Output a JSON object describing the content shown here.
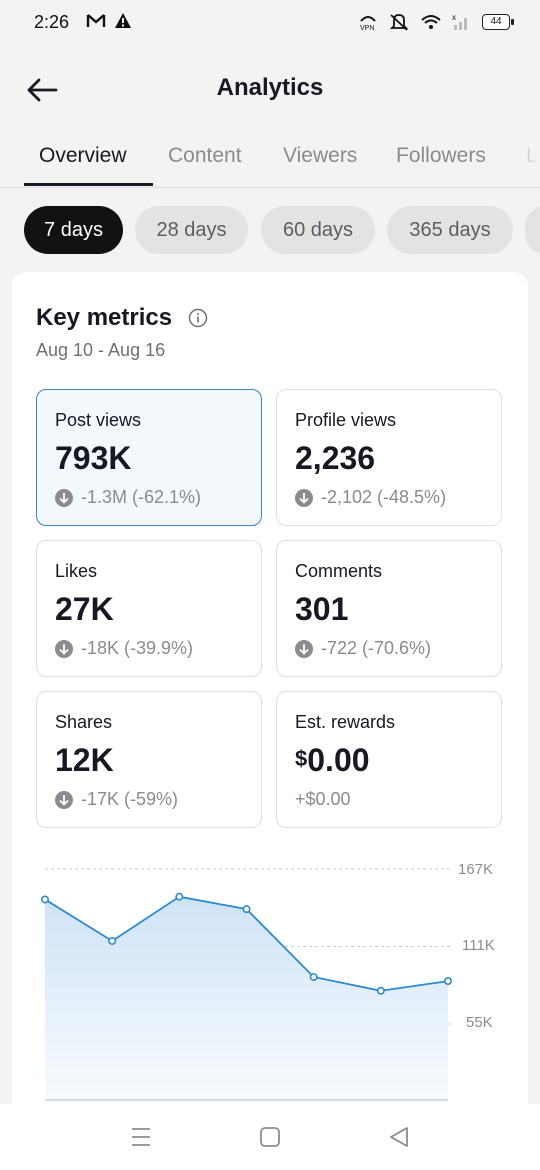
{
  "status_bar": {
    "time": "2:26",
    "battery": "44",
    "left_icons": [
      "gmail-icon",
      "alert-icon"
    ],
    "right_icons": [
      "vpn-icon",
      "mute-icon",
      "wifi-icon",
      "signal-icon",
      "battery-icon"
    ]
  },
  "header": {
    "title": "Analytics",
    "back_icon": "back-arrow-icon"
  },
  "tabs": [
    {
      "label": "Overview",
      "active": true
    },
    {
      "label": "Content",
      "active": false
    },
    {
      "label": "Viewers",
      "active": false
    },
    {
      "label": "Followers",
      "active": false
    },
    {
      "label": "L",
      "active": false
    }
  ],
  "ranges": [
    {
      "label": "7 days",
      "active": true
    },
    {
      "label": "28 days",
      "active": false
    },
    {
      "label": "60 days",
      "active": false
    },
    {
      "label": "365 days",
      "active": false
    }
  ],
  "key_metrics": {
    "title": "Key metrics",
    "date_range": "Aug 10 - Aug 16",
    "items": [
      {
        "label": "Post views",
        "value": "793K",
        "change": "-1.3M (-62.1%)",
        "trend": "down",
        "selected": true
      },
      {
        "label": "Profile views",
        "value": "2,236",
        "change": "-2,102 (-48.5%)",
        "trend": "down",
        "selected": false
      },
      {
        "label": "Likes",
        "value": "27K",
        "change": "-18K (-39.9%)",
        "trend": "down",
        "selected": false
      },
      {
        "label": "Comments",
        "value": "301",
        "change": "-722 (-70.6%)",
        "trend": "down",
        "selected": false
      },
      {
        "label": "Shares",
        "value": "12K",
        "change": "-17K (-59%)",
        "trend": "down",
        "selected": false
      },
      {
        "label": "Est. rewards",
        "value_symbol": "$",
        "value": "0.00",
        "change": "+$0.00",
        "trend": "none",
        "selected": false
      }
    ]
  },
  "chart_data": {
    "type": "area",
    "y_ticks": [
      "167K",
      "111K",
      "55K"
    ],
    "ylim": [
      0,
      167000
    ],
    "grid": true,
    "series": [
      {
        "values": [
          145000,
          115000,
          147000,
          138000,
          89000,
          79000,
          86000
        ]
      }
    ],
    "colors": {
      "line": "#2b8ad1",
      "fill_top": "#cfe3f6",
      "fill_bottom": "#ffffff"
    }
  },
  "nav": {
    "icons": [
      "recent-apps-icon",
      "home-icon",
      "back-icon"
    ]
  }
}
